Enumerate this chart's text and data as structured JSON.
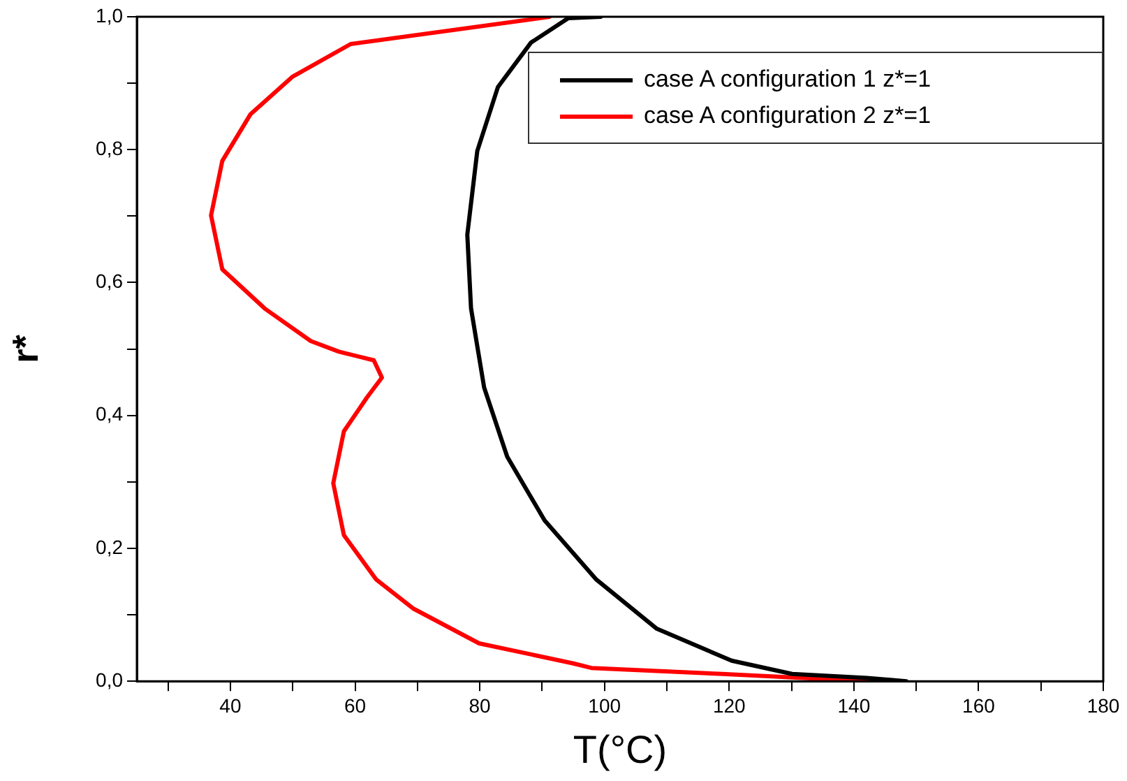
{
  "chart_data": {
    "type": "line",
    "xlabel": "T(°C)",
    "ylabel": "r*",
    "xlim": [
      25,
      180
    ],
    "ylim": [
      0,
      1
    ],
    "xticks": [
      {
        "value": 30,
        "label": null
      },
      40,
      {
        "value": 50,
        "label": null
      },
      60,
      {
        "value": 70,
        "label": null
      },
      80,
      {
        "value": 90,
        "label": null
      },
      100,
      {
        "value": 110,
        "label": null
      },
      120,
      {
        "value": 130,
        "label": null
      },
      140,
      {
        "value": 150,
        "label": null
      },
      160,
      {
        "value": 170,
        "label": null
      },
      180
    ],
    "yticks": [
      {
        "value": 0,
        "label": "0,0"
      },
      {
        "value": 0.1,
        "label": null
      },
      {
        "value": 0.2,
        "label": "0,2"
      },
      {
        "value": 0.3,
        "label": null
      },
      {
        "value": 0.4,
        "label": "0,4"
      },
      {
        "value": 0.5,
        "label": null
      },
      {
        "value": 0.6,
        "label": "0,6"
      },
      {
        "value": 0.7,
        "label": null
      },
      {
        "value": 0.8,
        "label": "0,8"
      },
      {
        "value": 0.9,
        "label": null
      },
      {
        "value": 1,
        "label": "1,0"
      }
    ],
    "grid": false,
    "legend": "top right",
    "marker": "none",
    "line_style": "solid",
    "series": [
      {
        "name": "case A configuration 1 z*=1",
        "color": "#000000",
        "x": [
          99.4,
          94.2,
          88.2,
          82.9,
          79.6,
          78.0,
          78.6,
          80.7,
          84.4,
          90.4,
          98.7,
          108.4,
          120.4,
          130.1,
          142.1,
          148.4
        ],
        "values": [
          1.0,
          0.998,
          0.961,
          0.894,
          0.798,
          0.672,
          0.561,
          0.442,
          0.338,
          0.242,
          0.153,
          0.079,
          0.031,
          0.011,
          0.005,
          0.0
        ]
      },
      {
        "name": "case A configuration 2 z*=1",
        "color": "#ff0000",
        "x": [
          91.2,
          59.3,
          50.0,
          43.2,
          38.7,
          36.9,
          38.7,
          45.5,
          52.9,
          57.4,
          63.0,
          64.3,
          61.9,
          58.2,
          56.5,
          58.2,
          63.4,
          69.4,
          79.9,
          94.9,
          97.9,
          118.9,
          142.5
        ],
        "values": [
          1.0,
          0.959,
          0.91,
          0.853,
          0.783,
          0.701,
          0.62,
          0.561,
          0.512,
          0.496,
          0.483,
          0.457,
          0.427,
          0.376,
          0.298,
          0.22,
          0.153,
          0.109,
          0.057,
          0.027,
          0.02,
          0.011,
          0.0
        ]
      }
    ]
  }
}
